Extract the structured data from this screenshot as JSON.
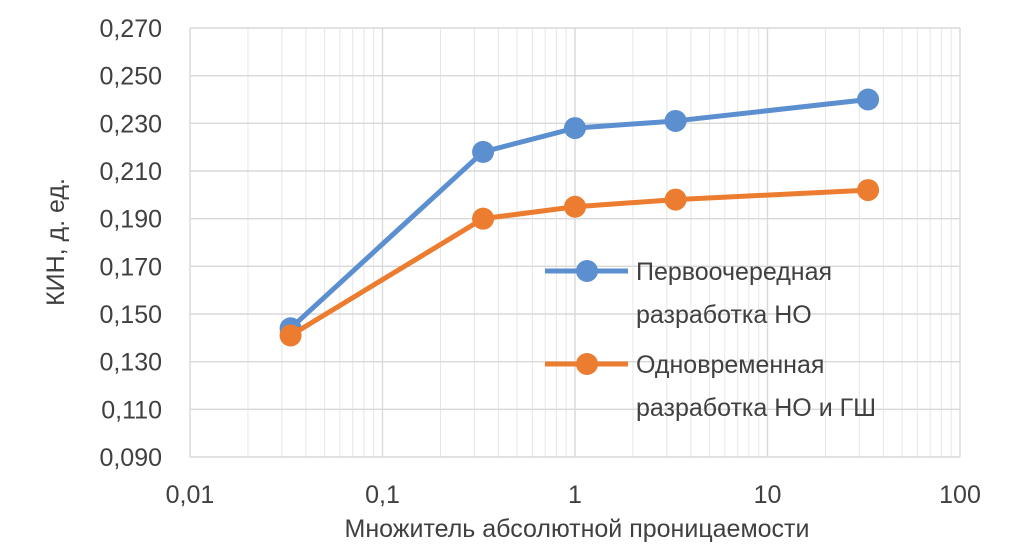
{
  "chart_data": {
    "type": "line",
    "x_scale": "log",
    "xlim": [
      0.01,
      100
    ],
    "ylim": [
      0.09,
      0.27
    ],
    "x_ticks": [
      "0,01",
      "0,1",
      "1",
      "10",
      "100"
    ],
    "y_ticks": [
      "0,270",
      "0,250",
      "0,230",
      "0,210",
      "0,190",
      "0,170",
      "0,150",
      "0,130",
      "0,110",
      "0,090"
    ],
    "xlabel": "Множитель абсолютной проницаемости",
    "ylabel": "КИН, д. ед.",
    "grid": true,
    "legend_position": "right-center",
    "series": [
      {
        "name": "Первоочередная разработка НО",
        "legend_lines": [
          "Первоочередная",
          "разработка НО"
        ],
        "color": "#5b8fd0",
        "x": [
          0.0333,
          0.333,
          1,
          3.33,
          33.3
        ],
        "y": [
          0.144,
          0.218,
          0.228,
          0.231,
          0.24
        ]
      },
      {
        "name": "Одновременная разработка НО и ГШ",
        "legend_lines": [
          "Одновременная",
          "разработка НО и ГШ"
        ],
        "color": "#ec7c30",
        "x": [
          0.0333,
          0.333,
          1,
          3.33,
          33.3
        ],
        "y": [
          0.141,
          0.19,
          0.195,
          0.198,
          0.202
        ]
      }
    ]
  }
}
